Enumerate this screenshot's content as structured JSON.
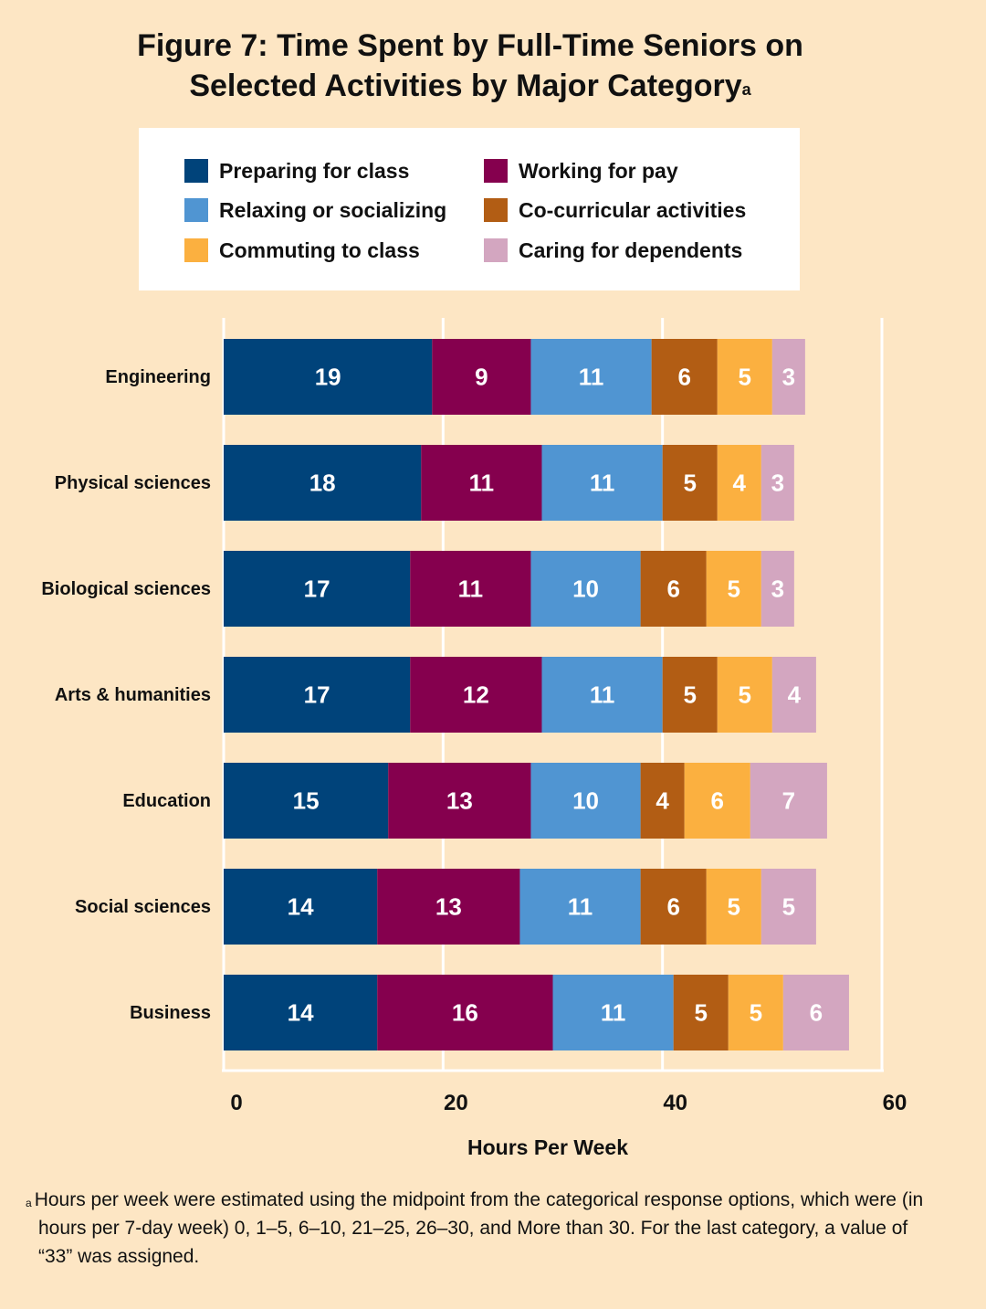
{
  "chart_data": {
    "type": "bar",
    "orientation": "horizontal",
    "stacked": true,
    "title": "Figure 7: Time Spent by Full-Time Seniors on Selected Activities by Major Category",
    "title_superscript": "a",
    "xlabel": "Hours Per Week",
    "ylabel": "",
    "xlim": [
      0,
      60
    ],
    "xticks": [
      0,
      20,
      40,
      60
    ],
    "grid": true,
    "legend_position": "top",
    "categories": [
      "Engineering",
      "Physical sciences",
      "Biological sciences",
      "Arts & humanities",
      "Education",
      "Social sciences",
      "Business"
    ],
    "series": [
      {
        "name": "Preparing for class",
        "color": "#00437a",
        "values": [
          19,
          18,
          17,
          17,
          15,
          14,
          14
        ]
      },
      {
        "name": "Working for pay",
        "color": "#85004e",
        "values": [
          9,
          11,
          11,
          12,
          13,
          13,
          16
        ]
      },
      {
        "name": "Relaxing or socializing",
        "color": "#5095d2",
        "values": [
          11,
          11,
          10,
          11,
          10,
          11,
          11
        ]
      },
      {
        "name": "Co-curricular activities",
        "color": "#b25d14",
        "values": [
          6,
          5,
          6,
          5,
          4,
          6,
          5
        ]
      },
      {
        "name": "Commuting to class",
        "color": "#fbb040",
        "values": [
          5,
          4,
          5,
          5,
          6,
          5,
          5
        ]
      },
      {
        "name": "Caring for dependents",
        "color": "#d3a6c0",
        "values": [
          3,
          3,
          3,
          4,
          7,
          5,
          6
        ]
      }
    ],
    "legend_order": [
      "Preparing for class",
      "Working for pay",
      "Relaxing or socializing",
      "Co-curricular activities",
      "Commuting to class",
      "Caring for dependents"
    ],
    "background_color": "#fde6c4",
    "gridline_color": "#ffffff",
    "value_label_color": "#ffffff"
  },
  "footnote": {
    "marker": "a",
    "text": "Hours per week were estimated using the midpoint from the categorical response options, which were (in hours per 7-day week) 0, 1–5, 6–10, 21–25, 26–30, and More than 30. For the last category, a value of “33” was assigned."
  }
}
